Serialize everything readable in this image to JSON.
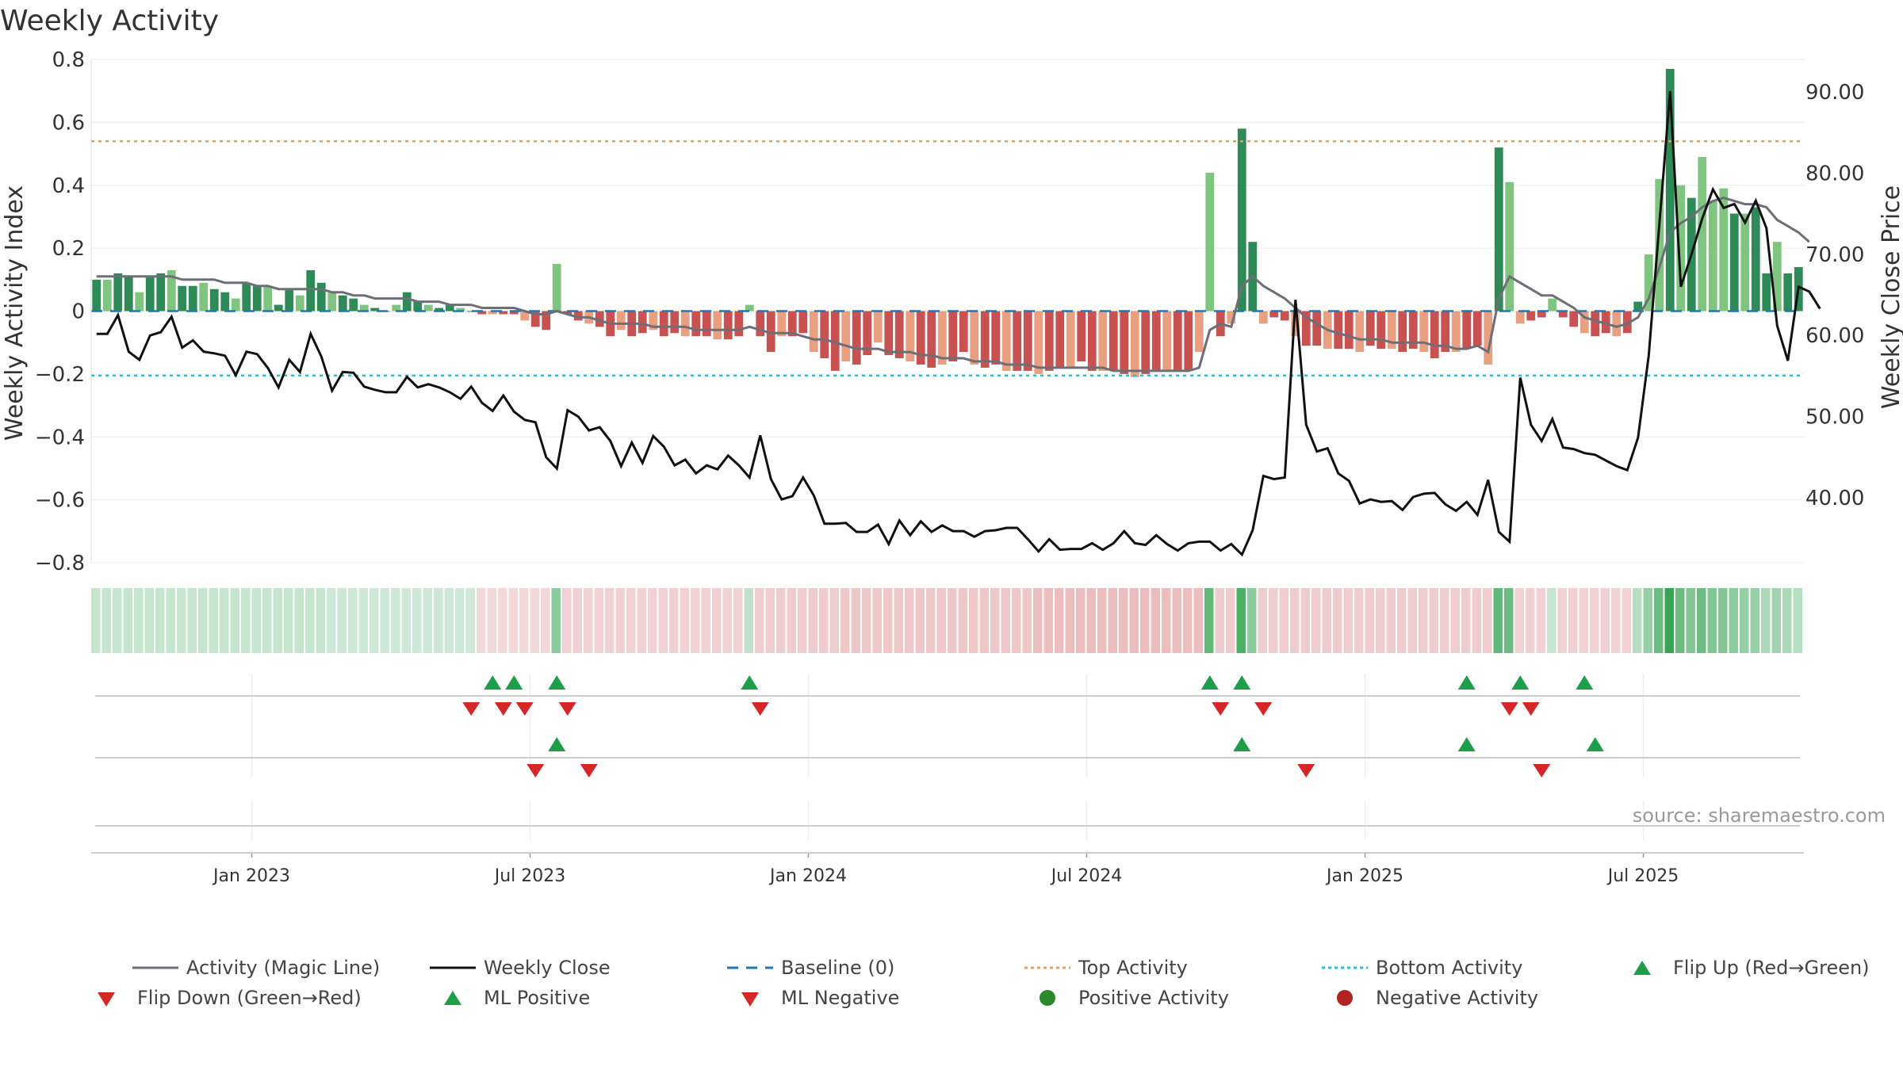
{
  "chart_data": {
    "type": "bar",
    "title": "Weekly Activity",
    "ylabel": "Weekly Activity Index",
    "y2label": "Weekly Close Price",
    "ylim": [
      -0.8,
      0.8
    ],
    "y2lim": [
      32,
      94
    ],
    "y_ticks": [
      "0.8",
      "0.6",
      "0.4",
      "0.2",
      "0",
      "−0.2",
      "−0.4",
      "−0.6",
      "−0.8"
    ],
    "y_tick_values": [
      0.8,
      0.6,
      0.4,
      0.2,
      0,
      -0.2,
      -0.4,
      -0.6,
      -0.8
    ],
    "y2_ticks": [
      "90.00",
      "80.00",
      "70.00",
      "60.00",
      "50.00",
      "40.00"
    ],
    "y2_tick_values": [
      90,
      80,
      70,
      60,
      50,
      40
    ],
    "x_ticks": [
      "Jan 2023",
      "Jul 2023",
      "Jan 2024",
      "Jul 2024",
      "Jan 2025",
      "Jul 2025"
    ],
    "x_tick_weeks": [
      14.5,
      40.5,
      66.5,
      92.5,
      118.5,
      144.5
    ],
    "top_activity": 0.54,
    "bottom_activity": -0.205,
    "baseline": 0,
    "source": "source: sharemaestro.com",
    "activity": [
      0.1,
      0.1,
      0.12,
      0.11,
      0.06,
      0.11,
      0.12,
      0.13,
      0.08,
      0.08,
      0.09,
      0.07,
      0.06,
      0.04,
      0.09,
      0.08,
      0.08,
      0.02,
      0.07,
      0.05,
      0.13,
      0.09,
      0.06,
      0.05,
      0.04,
      0.02,
      0.01,
      0,
      0.02,
      0.06,
      0.03,
      0.02,
      0.01,
      0.02,
      0.01,
      0,
      -0.01,
      -0.01,
      -0.01,
      -0.01,
      -0.03,
      -0.05,
      -0.06,
      0.15,
      -0.01,
      -0.03,
      -0.04,
      -0.05,
      -0.08,
      -0.06,
      -0.08,
      -0.07,
      -0.06,
      -0.08,
      -0.07,
      -0.08,
      -0.08,
      -0.08,
      -0.09,
      -0.09,
      -0.08,
      0.02,
      -0.08,
      -0.13,
      -0.08,
      -0.08,
      -0.07,
      -0.13,
      -0.15,
      -0.19,
      -0.16,
      -0.17,
      -0.14,
      -0.1,
      -0.14,
      -0.15,
      -0.16,
      -0.17,
      -0.18,
      -0.17,
      -0.16,
      -0.13,
      -0.17,
      -0.18,
      -0.17,
      -0.19,
      -0.19,
      -0.19,
      -0.2,
      -0.19,
      -0.18,
      -0.18,
      -0.16,
      -0.19,
      -0.19,
      -0.19,
      -0.2,
      -0.21,
      -0.2,
      -0.19,
      -0.19,
      -0.19,
      -0.19,
      -0.13,
      0.44,
      -0.08,
      -0.04,
      0.58,
      0.22,
      -0.04,
      -0.02,
      -0.03,
      -0.08,
      -0.11,
      -0.11,
      -0.12,
      -0.12,
      -0.12,
      -0.13,
      -0.11,
      -0.12,
      -0.12,
      -0.13,
      -0.12,
      -0.13,
      -0.15,
      -0.13,
      -0.13,
      -0.12,
      -0.11,
      -0.17,
      0.52,
      0.41,
      -0.04,
      -0.03,
      -0.02,
      0.04,
      -0.02,
      -0.05,
      -0.07,
      -0.08,
      -0.07,
      -0.08,
      -0.07,
      0.03,
      0.18,
      0.42,
      0.77,
      0.4,
      0.36,
      0.49,
      0.35,
      0.39,
      0.31,
      0.31,
      0.33,
      0.12,
      0.22,
      0.12,
      0.14
    ],
    "magic_line": [
      0.11,
      0.11,
      0.11,
      0.11,
      0.11,
      0.11,
      0.11,
      0.11,
      0.1,
      0.1,
      0.1,
      0.1,
      0.09,
      0.09,
      0.09,
      0.08,
      0.08,
      0.07,
      0.07,
      0.07,
      0.07,
      0.07,
      0.06,
      0.06,
      0.05,
      0.05,
      0.04,
      0.04,
      0.04,
      0.04,
      0.03,
      0.03,
      0.03,
      0.02,
      0.02,
      0.02,
      0.01,
      0.01,
      0.01,
      0.01,
      0,
      -0.01,
      -0.01,
      0,
      -0.01,
      -0.02,
      -0.02,
      -0.03,
      -0.04,
      -0.04,
      -0.04,
      -0.04,
      -0.05,
      -0.05,
      -0.05,
      -0.05,
      -0.06,
      -0.06,
      -0.06,
      -0.06,
      -0.06,
      -0.05,
      -0.06,
      -0.07,
      -0.07,
      -0.07,
      -0.08,
      -0.09,
      -0.09,
      -0.1,
      -0.11,
      -0.12,
      -0.12,
      -0.12,
      -0.13,
      -0.13,
      -0.13,
      -0.14,
      -0.14,
      -0.15,
      -0.15,
      -0.15,
      -0.16,
      -0.16,
      -0.16,
      -0.17,
      -0.17,
      -0.17,
      -0.18,
      -0.18,
      -0.18,
      -0.18,
      -0.18,
      -0.18,
      -0.18,
      -0.19,
      -0.19,
      -0.19,
      -0.19,
      -0.19,
      -0.19,
      -0.19,
      -0.19,
      -0.18,
      -0.06,
      -0.04,
      -0.05,
      0.08,
      0.11,
      0.08,
      0.06,
      0.04,
      0.01,
      -0.02,
      -0.04,
      -0.06,
      -0.07,
      -0.08,
      -0.09,
      -0.09,
      -0.09,
      -0.1,
      -0.1,
      -0.1,
      -0.1,
      -0.11,
      -0.11,
      -0.12,
      -0.12,
      -0.11,
      -0.13,
      0.04,
      0.11,
      0.09,
      0.07,
      0.05,
      0.05,
      0.03,
      0.01,
      -0.02,
      -0.03,
      -0.04,
      -0.05,
      -0.04,
      -0.02,
      0.04,
      0.14,
      0.25,
      0.28,
      0.3,
      0.33,
      0.35,
      0.36,
      0.35,
      0.34,
      0.34,
      0.33,
      0.29,
      0.27,
      0.25,
      0.22
    ],
    "weekly_close": [
      60.2,
      60.2,
      62.5,
      58,
      57,
      60,
      60.4,
      62.3,
      58.5,
      59.4,
      58,
      57.8,
      57.5,
      55.1,
      58,
      57.7,
      56,
      53.6,
      57,
      55.5,
      60.2,
      57.4,
      53.2,
      55.5,
      55.4,
      53.7,
      53.3,
      53,
      53,
      54.9,
      53.6,
      54,
      53.6,
      53,
      52.2,
      53.7,
      51.7,
      50.7,
      52.6,
      50.6,
      49.6,
      49.3,
      45,
      43.6,
      50.8,
      50,
      48.3,
      48.7,
      47,
      43.9,
      46.8,
      44.3,
      47.6,
      46.3,
      44,
      44.7,
      43,
      44,
      43.5,
      45.2,
      44,
      42.5,
      47.7,
      42.3,
      39.8,
      40.2,
      42.5,
      40.3,
      36.8,
      36.8,
      36.9,
      35.8,
      35.8,
      36.7,
      34.3,
      37.2,
      35.4,
      37.1,
      35.8,
      36.6,
      35.9,
      35.9,
      35.2,
      35.9,
      36,
      36.3,
      36.3,
      34.9,
      33.4,
      34.9,
      33.6,
      33.7,
      33.7,
      34.4,
      33.6,
      34.4,
      35.9,
      34.4,
      34.2,
      35.4,
      34.3,
      33.5,
      34.4,
      34.6,
      34.6,
      33.5,
      34.3,
      33,
      36,
      42.7,
      42.3,
      42.5,
      64.4,
      49,
      45.7,
      46.1,
      43,
      42.1,
      39.3,
      39.8,
      39.5,
      39.6,
      38.5,
      40.1,
      40.5,
      40.6,
      39.2,
      38.4,
      39.5,
      37.9,
      42.2,
      35.8,
      34.6,
      54.8,
      49,
      47,
      49.7,
      46.2,
      46,
      45.5,
      45.3,
      44.6,
      43.9,
      43.4,
      47.4,
      57.5,
      73.8,
      90.1,
      66,
      70,
      74.4,
      78,
      75.7,
      76.2,
      73.9,
      76.6,
      73.2,
      61.2,
      56.9,
      66,
      65.4,
      63.3
    ],
    "band_strength": [
      0.28,
      0.28,
      0.28,
      0.28,
      0.28,
      0.28,
      0.28,
      0.28,
      0.28,
      0.28,
      0.28,
      0.28,
      0.28,
      0.28,
      0.28,
      0.28,
      0.28,
      0.28,
      0.28,
      0.28,
      0.28,
      0.28,
      0.24,
      0.24,
      0.24,
      0.24,
      0.24,
      0.24,
      0.24,
      0.24,
      0.24,
      0.24,
      0.24,
      0.24,
      0.24,
      0.24,
      0.24,
      0.24,
      0.24,
      0.24,
      0.24,
      0.24,
      0.24,
      0.55,
      0.28,
      0.28,
      0.28,
      0.28,
      0.28,
      0.28,
      0.28,
      0.28,
      0.28,
      0.28,
      0.28,
      0.28,
      0.28,
      0.28,
      0.28,
      0.28,
      0.28,
      0.3,
      0.3,
      0.3,
      0.3,
      0.3,
      0.3,
      0.3,
      0.3,
      0.3,
      0.34,
      0.34,
      0.34,
      0.34,
      0.34,
      0.34,
      0.34,
      0.34,
      0.34,
      0.34,
      0.34,
      0.34,
      0.34,
      0.34,
      0.34,
      0.34,
      0.34,
      0.34,
      0.4,
      0.4,
      0.4,
      0.4,
      0.4,
      0.4,
      0.4,
      0.4,
      0.4,
      0.4,
      0.4,
      0.4,
      0.4,
      0.4,
      0.4,
      0.4,
      0.75,
      0.3,
      0.3,
      0.85,
      0.55,
      0.3,
      0.3,
      0.3,
      0.3,
      0.3,
      0.3,
      0.3,
      0.3,
      0.3,
      0.3,
      0.3,
      0.3,
      0.3,
      0.3,
      0.3,
      0.3,
      0.3,
      0.3,
      0.3,
      0.3,
      0.3,
      0.3,
      0.75,
      0.7,
      0.28,
      0.28,
      0.28,
      0.28,
      0.28,
      0.28,
      0.28,
      0.28,
      0.28,
      0.28,
      0.28,
      0.35,
      0.5,
      0.7,
      0.95,
      0.7,
      0.6,
      0.7,
      0.6,
      0.6,
      0.55,
      0.5,
      0.5,
      0.4,
      0.45,
      0.4,
      0.35
    ],
    "flip_up_weeks": [
      37,
      39,
      43,
      61,
      104,
      107,
      128,
      133,
      139
    ],
    "flip_down_weeks": [
      35,
      38,
      40,
      44,
      62,
      105,
      109,
      132,
      134
    ],
    "ml_positive_weeks": [
      43,
      107,
      128,
      140
    ],
    "ml_negative_weeks": [
      41,
      46,
      113,
      135
    ],
    "legend": [
      {
        "label": "Activity (Magic Line)"
      },
      {
        "label": "Weekly Close"
      },
      {
        "label": "Baseline (0)"
      },
      {
        "label": "Top Activity"
      },
      {
        "label": "Bottom Activity"
      },
      {
        "label": "Flip Up (Red→Green)"
      },
      {
        "label": "Flip Down (Green→Red)"
      },
      {
        "label": "ML Positive"
      },
      {
        "label": "ML Negative"
      },
      {
        "label": "Positive Activity"
      },
      {
        "label": "Negative Activity"
      }
    ],
    "colors": {
      "pos_dark": "#2e8b57",
      "pos_light": "#7fc47f",
      "neg_dark": "#c85250",
      "neg_light": "#e8a080",
      "magic_line": "#6e6e78",
      "weekly_close": "#111111",
      "baseline": "#1f77b4",
      "top_activity": "#e0a060",
      "bottom_activity": "#22c4d0",
      "flip_up": "#1e9e4a",
      "flip_down": "#d62728",
      "positive_dot": "#2a8a2a",
      "negative_dot": "#b22222"
    }
  }
}
